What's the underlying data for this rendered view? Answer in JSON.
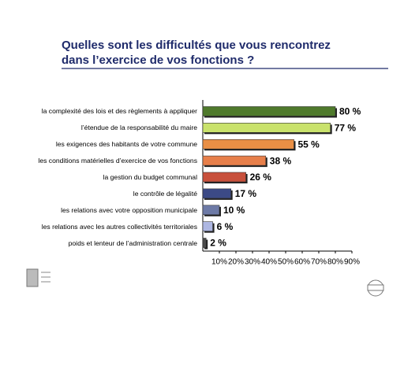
{
  "chart_data": {
    "type": "bar",
    "orientation": "horizontal",
    "title": [
      "Quelles sont les difficultés que vous rencontrez",
      "dans l’exercice de vos fonctions ?"
    ],
    "categories": [
      "la complexité des lois et des règlements à appliquer",
      "l’étendue de la responsabilité du maire",
      "les exigences des habitants de votre commune",
      "les conditions matérielles d’exercice de vos fonctions",
      "la gestion du budget communal",
      "le contrôle de légalité",
      "les relations avec votre opposition municipale",
      "les relations avec les autres collectivités territoriales",
      "poids et lenteur de l’administration centrale"
    ],
    "values": [
      80,
      77,
      55,
      38,
      26,
      17,
      10,
      6,
      2
    ],
    "value_labels": [
      "80 %",
      "77 %",
      "55 %",
      "38 %",
      "26 %",
      "17 %",
      "10 %",
      "6 %",
      "2 %"
    ],
    "colors": [
      "#4f7a2c",
      "#c9e26c",
      "#e98f45",
      "#e77f4a",
      "#c8503c",
      "#3c4a86",
      "#6d7aa6",
      "#aeb7e2",
      "#4a4a4a"
    ],
    "xlim": [
      0,
      90
    ],
    "xticks": [
      {
        "value": 10,
        "label": "10%"
      },
      {
        "value": 20,
        "label": "20%"
      },
      {
        "value": 30,
        "label": "30%"
      },
      {
        "value": 40,
        "label": "40%"
      },
      {
        "value": 50,
        "label": "50%"
      },
      {
        "value": 60,
        "label": "60%"
      },
      {
        "value": 70,
        "label": "70%"
      },
      {
        "value": 80,
        "label": "80%"
      },
      {
        "value": 90,
        "label": "90%"
      }
    ]
  }
}
